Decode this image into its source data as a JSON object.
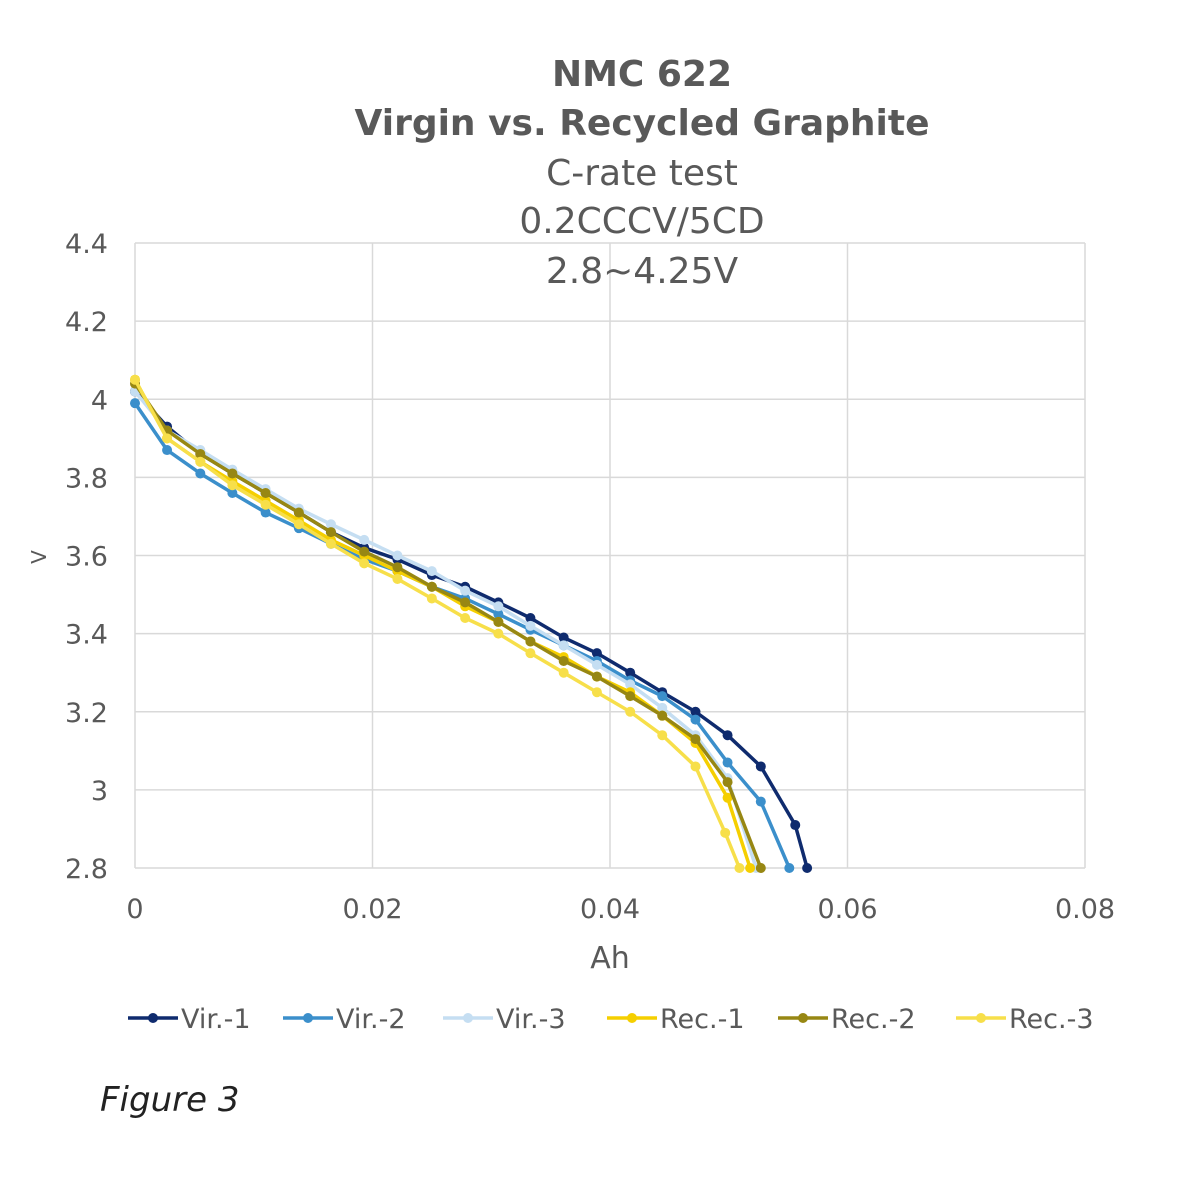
{
  "chart_data": {
    "type": "line",
    "title": [
      "NMC 622",
      "Virgin vs. Recycled Graphite"
    ],
    "subtitle": [
      "C-rate test",
      "0.2CCCV/5CD",
      "2.8~4.25V"
    ],
    "xlabel": "Ah",
    "ylabel": "V",
    "xlim": [
      0,
      0.08
    ],
    "ylim": [
      2.8,
      4.4
    ],
    "xticks": [
      "0",
      "0.02",
      "0.04",
      "0.06",
      "0.08"
    ],
    "yticks": [
      "2.8",
      "3",
      "3.2",
      "3.4",
      "3.6",
      "3.8",
      "4",
      "4.2",
      "4.4"
    ],
    "grid": true,
    "legend": "bottom",
    "series": [
      {
        "name": "Vir.-1",
        "color": "#0f2b6e",
        "x": [
          0,
          0.0027,
          0.0055,
          0.0082,
          0.011,
          0.0138,
          0.0165,
          0.0193,
          0.0221,
          0.025,
          0.0278,
          0.0306,
          0.0333,
          0.0361,
          0.0389,
          0.0417,
          0.0444,
          0.0472,
          0.0499,
          0.0527,
          0.0556,
          0.0566
        ],
        "y": [
          4.02,
          3.93,
          3.86,
          3.81,
          3.76,
          3.71,
          3.66,
          3.62,
          3.59,
          3.55,
          3.52,
          3.48,
          3.44,
          3.39,
          3.35,
          3.3,
          3.25,
          3.2,
          3.14,
          3.06,
          2.91,
          2.8
        ]
      },
      {
        "name": "Vir.-2",
        "color": "#3b8fcb",
        "x": [
          0,
          0.0027,
          0.0055,
          0.0082,
          0.011,
          0.0138,
          0.0165,
          0.0193,
          0.0221,
          0.025,
          0.0278,
          0.0306,
          0.0333,
          0.0361,
          0.0389,
          0.0417,
          0.0444,
          0.0472,
          0.0499,
          0.0527,
          0.0551
        ],
        "y": [
          3.99,
          3.87,
          3.81,
          3.76,
          3.71,
          3.67,
          3.63,
          3.59,
          3.56,
          3.52,
          3.49,
          3.45,
          3.41,
          3.37,
          3.33,
          3.28,
          3.24,
          3.18,
          3.07,
          2.97,
          2.8
        ]
      },
      {
        "name": "Vir.-3",
        "color": "#c5def2",
        "x": [
          0,
          0.0027,
          0.0055,
          0.0082,
          0.011,
          0.0138,
          0.0165,
          0.0193,
          0.0221,
          0.025,
          0.0278,
          0.0306,
          0.0333,
          0.0361,
          0.0389,
          0.0417,
          0.0444,
          0.0472,
          0.0499,
          0.0523
        ],
        "y": [
          4.02,
          3.92,
          3.87,
          3.82,
          3.77,
          3.72,
          3.68,
          3.64,
          3.6,
          3.56,
          3.51,
          3.47,
          3.42,
          3.37,
          3.32,
          3.27,
          3.21,
          3.14,
          3.03,
          2.8
        ]
      },
      {
        "name": "Rec.-1",
        "color": "#f5cf00",
        "x": [
          0,
          0.0027,
          0.0055,
          0.0082,
          0.011,
          0.0138,
          0.0165,
          0.0193,
          0.0221,
          0.025,
          0.0278,
          0.0306,
          0.0333,
          0.0361,
          0.0389,
          0.0417,
          0.0444,
          0.0472,
          0.0499,
          0.0518
        ],
        "y": [
          4.05,
          3.9,
          3.84,
          3.79,
          3.74,
          3.69,
          3.64,
          3.6,
          3.56,
          3.52,
          3.47,
          3.43,
          3.38,
          3.34,
          3.29,
          3.25,
          3.19,
          3.12,
          2.98,
          2.8
        ]
      },
      {
        "name": "Rec.-2",
        "color": "#978713",
        "x": [
          0,
          0.0027,
          0.0055,
          0.0082,
          0.011,
          0.0138,
          0.0165,
          0.0193,
          0.0221,
          0.025,
          0.0278,
          0.0306,
          0.0333,
          0.0361,
          0.0389,
          0.0417,
          0.0444,
          0.0472,
          0.0499,
          0.0527
        ],
        "y": [
          4.04,
          3.92,
          3.86,
          3.81,
          3.76,
          3.71,
          3.66,
          3.61,
          3.57,
          3.52,
          3.48,
          3.43,
          3.38,
          3.33,
          3.29,
          3.24,
          3.19,
          3.13,
          3.02,
          2.8
        ]
      },
      {
        "name": "Rec.-3",
        "color": "#f7df4a",
        "x": [
          0,
          0.0027,
          0.0055,
          0.0082,
          0.011,
          0.0138,
          0.0165,
          0.0193,
          0.0221,
          0.025,
          0.0278,
          0.0306,
          0.0333,
          0.0361,
          0.0389,
          0.0417,
          0.0444,
          0.0472,
          0.0497,
          0.0509
        ],
        "y": [
          4.05,
          3.9,
          3.84,
          3.78,
          3.73,
          3.68,
          3.63,
          3.58,
          3.54,
          3.49,
          3.44,
          3.4,
          3.35,
          3.3,
          3.25,
          3.2,
          3.14,
          3.06,
          2.89,
          2.8
        ]
      }
    ]
  },
  "caption": "Figure 3"
}
